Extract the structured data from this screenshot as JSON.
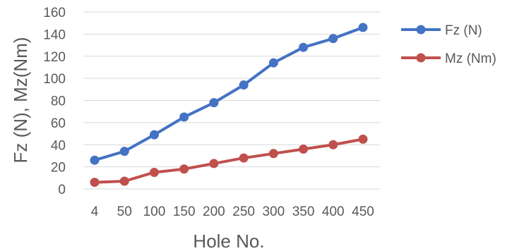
{
  "chart_data": {
    "type": "line",
    "categories": [
      "4",
      "50",
      "100",
      "150",
      "200",
      "250",
      "300",
      "350",
      "400",
      "450"
    ],
    "series": [
      {
        "name": "Fz (N)",
        "color": "#4472c4",
        "values": [
          26,
          34,
          49,
          65,
          78,
          94,
          114,
          128,
          136,
          146
        ]
      },
      {
        "name": "Mz (Nm)",
        "color": "#c0504d",
        "values": [
          6,
          7,
          15,
          18,
          23,
          28,
          32,
          36,
          40,
          45
        ]
      }
    ],
    "title": "",
    "xlabel": "Hole No.",
    "ylabel": "Fz (N), Mz(Nm)",
    "ylim": [
      0,
      160
    ],
    "yticks": [
      0,
      20,
      40,
      60,
      80,
      100,
      120,
      140,
      160
    ],
    "grid": true,
    "legend": "right"
  }
}
